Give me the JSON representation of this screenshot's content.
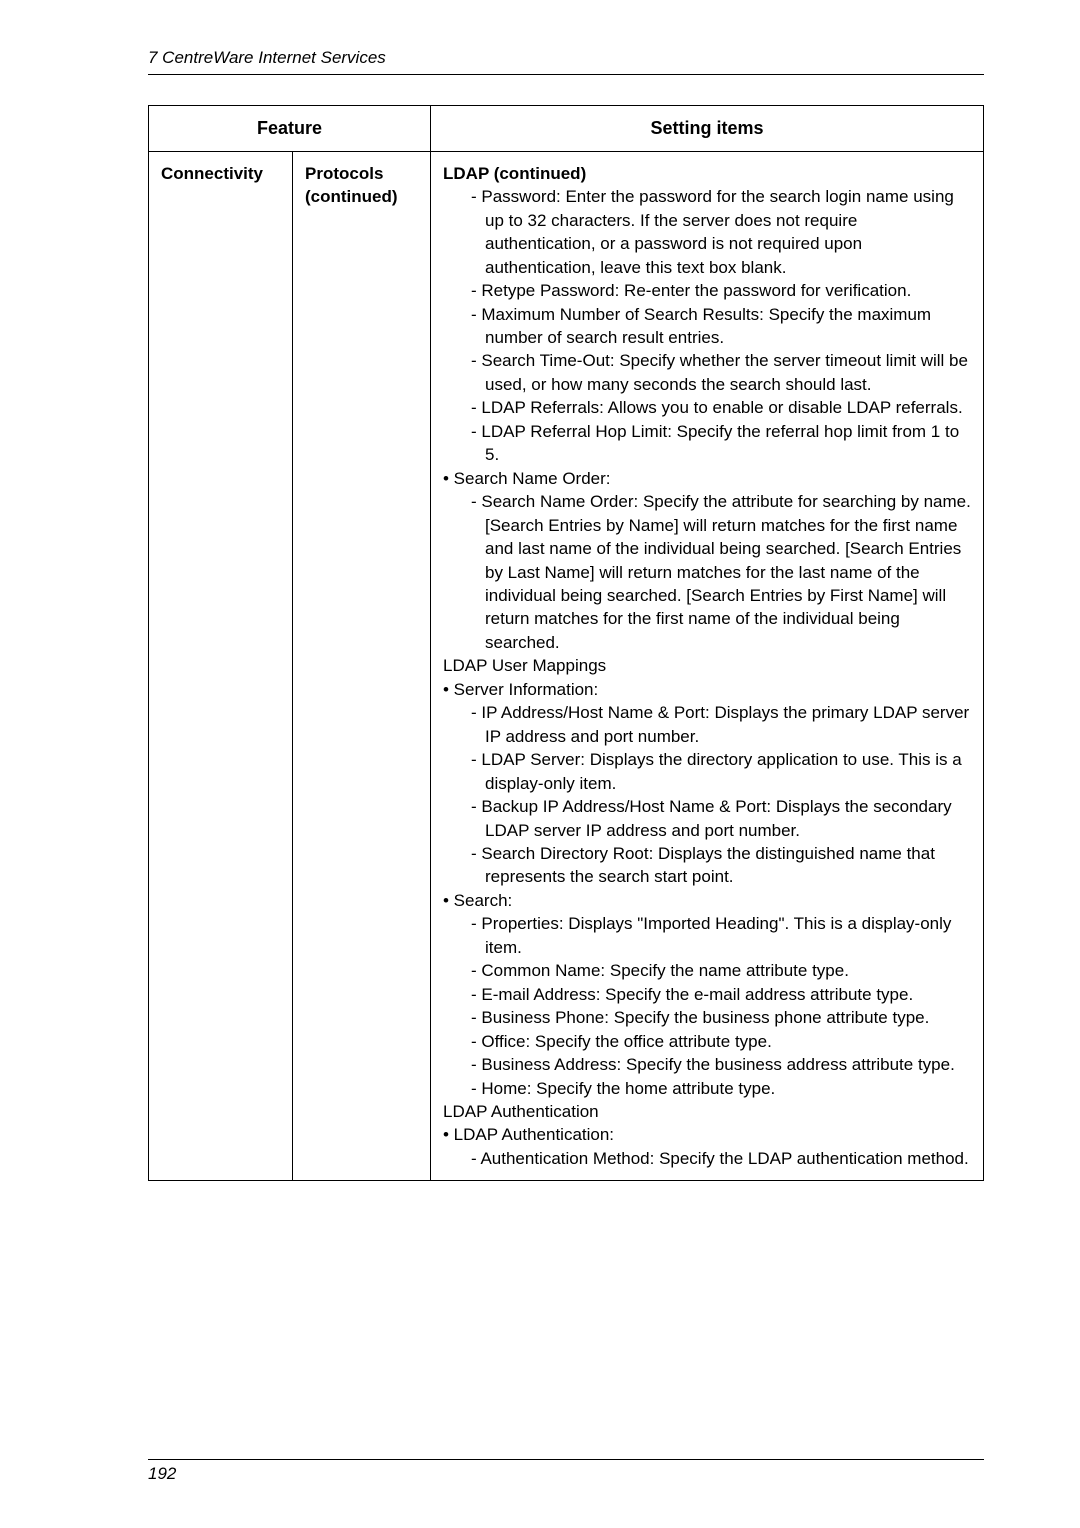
{
  "header": {
    "title": "7  CentreWare Internet Services"
  },
  "table": {
    "headers": {
      "feature": "Feature",
      "setting": "Setting items"
    },
    "row": {
      "col1": "Connectivity",
      "col2_line1": "Protocols",
      "col2_line2": "(continued)",
      "col3": {
        "title": "LDAP (continued)",
        "l1": "- Password: Enter the password for the search login name using up to 32 characters. If the server does not require authentication, or a password is not required upon authentication, leave this text box blank.",
        "l2": "- Retype Password: Re-enter the password for verification.",
        "l3": "- Maximum Number of Search Results: Specify the maximum number of search result entries.",
        "l4": "- Search Time-Out: Specify whether the server timeout limit will be used, or how many seconds the search should last.",
        "l5": "- LDAP Referrals: Allows you to enable or disable LDAP referrals.",
        "l6": "- LDAP Referral Hop Limit: Specify the referral hop limit from 1 to 5.",
        "b1": "•  Search Name Order:",
        "l7": "- Search Name Order: Specify the attribute for searching by name. [Search Entries by Name] will return matches for the first name and last name of the individual being searched. [Search Entries by Last Name] will return matches for the last name of the individual being searched. [Search Entries by First Name] will return matches for the first name of the individual being searched.",
        "h2": "LDAP User Mappings",
        "b2": "•  Server Information:",
        "l8": "- IP Address/Host Name & Port: Displays the primary LDAP server IP address and port number.",
        "l9": "- LDAP Server: Displays the directory application to use. This is a display-only item.",
        "l10": "- Backup IP Address/Host Name & Port: Displays the secondary LDAP server IP address and port number.",
        "l11": "- Search Directory Root: Displays the distinguished name that represents the search start point.",
        "b3": "•  Search:",
        "l12": "- Properties: Displays \"Imported Heading\". This is a display-only item.",
        "l13": "- Common Name: Specify the name attribute type.",
        "l14": "- E-mail Address: Specify the e-mail address attribute type.",
        "l15": "- Business Phone: Specify the business phone attribute type.",
        "l16": "- Office: Specify the office attribute type.",
        "l17": "- Business Address: Specify the business address attribute type.",
        "l18": "- Home: Specify the home attribute type.",
        "h3": "LDAP Authentication",
        "b4": "•  LDAP Authentication:",
        "l19": "- Authentication Method: Specify the LDAP authentication method."
      }
    }
  },
  "footer": {
    "page": "192"
  }
}
